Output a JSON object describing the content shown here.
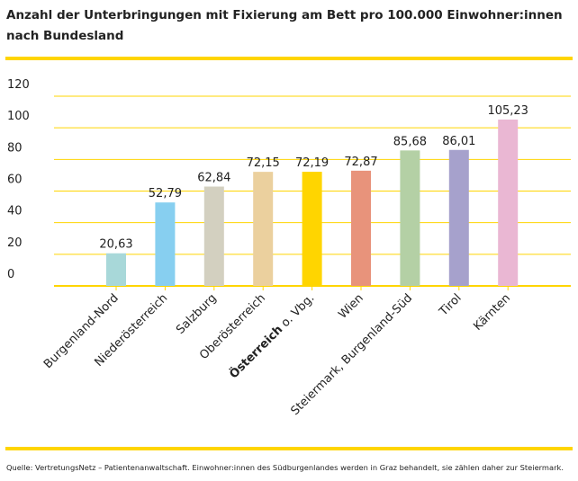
{
  "title_line1": "Anzahl der Unterbringungen mit Fixierung am Bett pro 100.000 Einwohner:innen",
  "title_line2": "nach Bundesland",
  "source": "Quelle: VertretungsNetz – Patientenanwaltschaft. Einwohner:innen des Südburgenlandes werden in Graz behandelt, sie zählen daher zur Steiermark.",
  "accent_color": "#ffd500",
  "chart_data": {
    "type": "bar",
    "title": "Anzahl der Unterbringungen mit Fixierung am Bett pro 100.000 Einwohner:innen nach Bundesland",
    "xlabel": "",
    "ylabel": "",
    "ylim": [
      0,
      120
    ],
    "yticks": [
      0,
      20,
      40,
      60,
      80,
      100,
      120
    ],
    "grid": true,
    "legend": "none",
    "categories": [
      "Burgenland-Nord",
      "Niederösterreich",
      "Salzburg",
      "Oberösterreich",
      "Österreich o. Vbg.",
      "Wien",
      "Steiermark, Burgenland-Süd",
      "Tirol",
      "Kärnten"
    ],
    "category_bold_part": [
      "",
      "",
      "",
      "",
      "Österreich",
      "",
      "",
      "",
      ""
    ],
    "values": [
      20.63,
      52.79,
      62.84,
      72.15,
      72.19,
      72.87,
      85.68,
      86.01,
      105.23
    ],
    "value_labels": [
      "20,63",
      "52,79",
      "62,84",
      "72,15",
      "72,19",
      "72,87",
      "85,68",
      "86,01",
      "105,23"
    ],
    "colors": [
      "#a8d8d9",
      "#87cff0",
      "#d3d0c0",
      "#ebd09e",
      "#ffd500",
      "#e8937b",
      "#b4d0a5",
      "#a6a1cc",
      "#eab7d3"
    ],
    "gridline_color": "#ffd500"
  }
}
